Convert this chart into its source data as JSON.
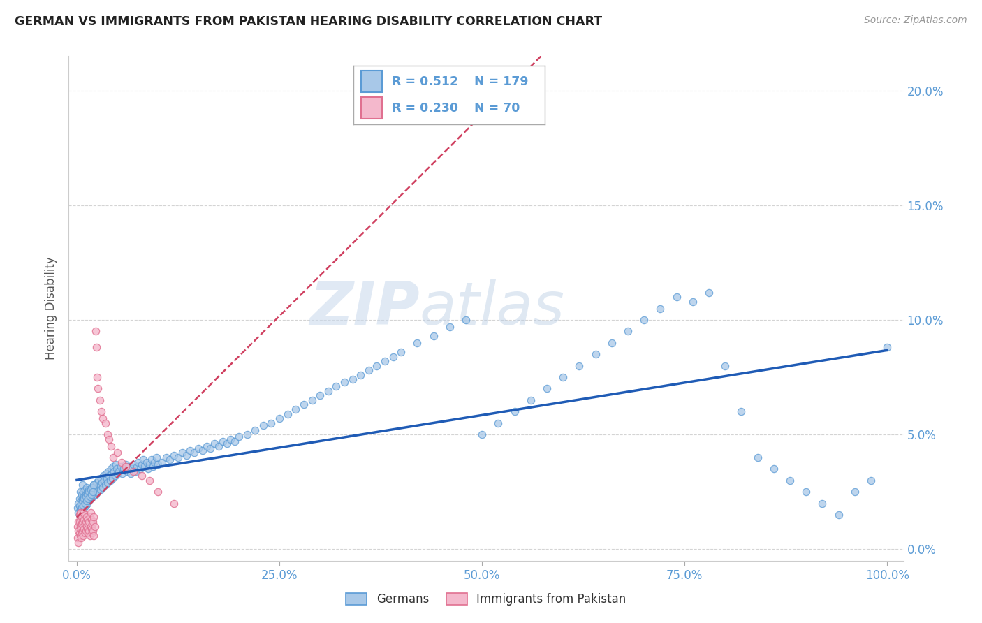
{
  "title": "GERMAN VS IMMIGRANTS FROM PAKISTAN HEARING DISABILITY CORRELATION CHART",
  "source": "Source: ZipAtlas.com",
  "ylabel": "Hearing Disability",
  "watermark_zip": "ZIP",
  "watermark_atlas": "atlas",
  "legend": {
    "blue_label": "Germans",
    "pink_label": "Immigrants from Pakistan",
    "blue_R": "0.512",
    "blue_N": "179",
    "pink_R": "0.230",
    "pink_N": "70"
  },
  "xlim": [
    -0.01,
    1.02
  ],
  "ylim": [
    -0.005,
    0.215
  ],
  "yticks": [
    0.0,
    0.05,
    0.1,
    0.15,
    0.2
  ],
  "ytick_labels": [
    "0.0%",
    "5.0%",
    "10.0%",
    "15.0%",
    "20.0%"
  ],
  "xticks": [
    0.0,
    0.25,
    0.5,
    0.75,
    1.0
  ],
  "xtick_labels": [
    "0.0%",
    "25.0%",
    "50.0%",
    "75.0%",
    "100.0%"
  ],
  "blue_scatter_color": "#a8c8e8",
  "blue_edge_color": "#5b9bd5",
  "pink_scatter_color": "#f4b8cc",
  "pink_edge_color": "#e07090",
  "blue_line_color": "#1f5bb5",
  "pink_line_color": "#d04060",
  "title_color": "#222222",
  "axis_label_color": "#5b9bd5",
  "grid_color": "#d0d0d0",
  "background_color": "#ffffff",
  "blue_scatter": {
    "x": [
      0.001,
      0.002,
      0.003,
      0.003,
      0.004,
      0.004,
      0.005,
      0.005,
      0.005,
      0.006,
      0.006,
      0.007,
      0.007,
      0.007,
      0.008,
      0.008,
      0.009,
      0.009,
      0.01,
      0.01,
      0.011,
      0.011,
      0.012,
      0.012,
      0.013,
      0.013,
      0.014,
      0.015,
      0.015,
      0.016,
      0.017,
      0.018,
      0.019,
      0.02,
      0.021,
      0.022,
      0.023,
      0.024,
      0.025,
      0.026,
      0.027,
      0.028,
      0.029,
      0.03,
      0.031,
      0.032,
      0.033,
      0.034,
      0.035,
      0.036,
      0.037,
      0.038,
      0.039,
      0.04,
      0.041,
      0.042,
      0.043,
      0.044,
      0.045,
      0.046,
      0.047,
      0.048,
      0.049,
      0.05,
      0.052,
      0.054,
      0.056,
      0.058,
      0.06,
      0.062,
      0.064,
      0.066,
      0.068,
      0.07,
      0.072,
      0.074,
      0.076,
      0.078,
      0.08,
      0.082,
      0.084,
      0.086,
      0.088,
      0.09,
      0.092,
      0.094,
      0.096,
      0.098,
      0.1,
      0.105,
      0.11,
      0.115,
      0.12,
      0.125,
      0.13,
      0.135,
      0.14,
      0.145,
      0.15,
      0.155,
      0.16,
      0.165,
      0.17,
      0.175,
      0.18,
      0.185,
      0.19,
      0.195,
      0.2,
      0.21,
      0.22,
      0.23,
      0.24,
      0.25,
      0.26,
      0.27,
      0.28,
      0.29,
      0.3,
      0.31,
      0.32,
      0.33,
      0.34,
      0.35,
      0.36,
      0.37,
      0.38,
      0.39,
      0.4,
      0.42,
      0.44,
      0.46,
      0.48,
      0.5,
      0.52,
      0.54,
      0.56,
      0.58,
      0.6,
      0.62,
      0.64,
      0.66,
      0.68,
      0.7,
      0.72,
      0.74,
      0.76,
      0.78,
      0.8,
      0.82,
      0.84,
      0.86,
      0.88,
      0.9,
      0.92,
      0.94,
      0.96,
      0.98,
      1.0,
      0.002,
      0.003,
      0.004,
      0.005,
      0.006,
      0.007,
      0.008,
      0.009,
      0.01,
      0.011,
      0.012,
      0.013,
      0.014,
      0.015,
      0.016,
      0.017,
      0.018,
      0.019,
      0.02,
      0.021
    ],
    "y": [
      0.018,
      0.02,
      0.022,
      0.015,
      0.025,
      0.018,
      0.021,
      0.017,
      0.023,
      0.019,
      0.024,
      0.016,
      0.022,
      0.028,
      0.02,
      0.025,
      0.018,
      0.023,
      0.021,
      0.026,
      0.019,
      0.024,
      0.022,
      0.027,
      0.02,
      0.025,
      0.023,
      0.021,
      0.026,
      0.024,
      0.022,
      0.027,
      0.025,
      0.023,
      0.028,
      0.026,
      0.024,
      0.029,
      0.027,
      0.025,
      0.03,
      0.028,
      0.026,
      0.031,
      0.029,
      0.027,
      0.032,
      0.03,
      0.028,
      0.033,
      0.031,
      0.029,
      0.034,
      0.032,
      0.03,
      0.035,
      0.033,
      0.031,
      0.036,
      0.034,
      0.032,
      0.037,
      0.035,
      0.033,
      0.034,
      0.036,
      0.033,
      0.035,
      0.037,
      0.034,
      0.036,
      0.033,
      0.035,
      0.037,
      0.034,
      0.036,
      0.038,
      0.035,
      0.037,
      0.039,
      0.036,
      0.038,
      0.035,
      0.037,
      0.039,
      0.036,
      0.038,
      0.04,
      0.037,
      0.038,
      0.04,
      0.039,
      0.041,
      0.04,
      0.042,
      0.041,
      0.043,
      0.042,
      0.044,
      0.043,
      0.045,
      0.044,
      0.046,
      0.045,
      0.047,
      0.046,
      0.048,
      0.047,
      0.049,
      0.05,
      0.052,
      0.054,
      0.055,
      0.057,
      0.059,
      0.061,
      0.063,
      0.065,
      0.067,
      0.069,
      0.071,
      0.073,
      0.074,
      0.076,
      0.078,
      0.08,
      0.082,
      0.084,
      0.086,
      0.09,
      0.093,
      0.097,
      0.1,
      0.05,
      0.055,
      0.06,
      0.065,
      0.07,
      0.075,
      0.08,
      0.085,
      0.09,
      0.095,
      0.1,
      0.105,
      0.11,
      0.108,
      0.112,
      0.08,
      0.06,
      0.04,
      0.035,
      0.03,
      0.025,
      0.02,
      0.015,
      0.025,
      0.03,
      0.088,
      0.016,
      0.019,
      0.017,
      0.02,
      0.018,
      0.021,
      0.019,
      0.022,
      0.02,
      0.023,
      0.021,
      0.024,
      0.022,
      0.025,
      0.023,
      0.026,
      0.024,
      0.027,
      0.025,
      0.028
    ]
  },
  "pink_scatter": {
    "x": [
      0.001,
      0.001,
      0.002,
      0.002,
      0.002,
      0.003,
      0.003,
      0.003,
      0.004,
      0.004,
      0.004,
      0.005,
      0.005,
      0.005,
      0.006,
      0.006,
      0.006,
      0.007,
      0.007,
      0.008,
      0.008,
      0.008,
      0.009,
      0.009,
      0.01,
      0.01,
      0.01,
      0.011,
      0.011,
      0.012,
      0.012,
      0.013,
      0.013,
      0.014,
      0.014,
      0.015,
      0.015,
      0.016,
      0.016,
      0.017,
      0.017,
      0.018,
      0.018,
      0.019,
      0.019,
      0.02,
      0.02,
      0.021,
      0.021,
      0.022,
      0.023,
      0.024,
      0.025,
      0.026,
      0.028,
      0.03,
      0.032,
      0.035,
      0.038,
      0.04,
      0.042,
      0.045,
      0.05,
      0.055,
      0.06,
      0.07,
      0.08,
      0.09,
      0.1,
      0.12
    ],
    "y": [
      0.01,
      0.005,
      0.012,
      0.008,
      0.003,
      0.015,
      0.007,
      0.012,
      0.01,
      0.006,
      0.016,
      0.009,
      0.013,
      0.005,
      0.011,
      0.007,
      0.014,
      0.008,
      0.012,
      0.01,
      0.016,
      0.006,
      0.013,
      0.009,
      0.011,
      0.007,
      0.015,
      0.008,
      0.012,
      0.01,
      0.014,
      0.009,
      0.013,
      0.007,
      0.011,
      0.012,
      0.008,
      0.014,
      0.006,
      0.01,
      0.016,
      0.009,
      0.013,
      0.007,
      0.011,
      0.012,
      0.008,
      0.014,
      0.006,
      0.01,
      0.095,
      0.088,
      0.075,
      0.07,
      0.065,
      0.06,
      0.057,
      0.055,
      0.05,
      0.048,
      0.045,
      0.04,
      0.042,
      0.038,
      0.036,
      0.034,
      0.032,
      0.03,
      0.025,
      0.02
    ]
  }
}
